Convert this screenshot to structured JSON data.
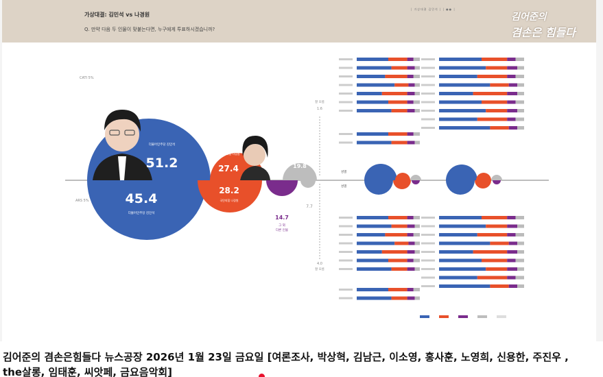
{
  "slide": {
    "title": "가상대결: 김민석 vs 나경원",
    "question": "Q. 만약 다음 두 인물이 맞붙는다면, 누구에게 투표하시겠습니까?",
    "source": "| 가상대결 김민석 | | ●● |",
    "logo_line1": "김어준의",
    "logo_line2": "겸손은 힘들다"
  },
  "left_labels": {
    "top": "CATI 5%",
    "bottom": "ARS 5%"
  },
  "candidates": {
    "kim_top": {
      "value": "51.2",
      "party": "더불어민주당 김민석"
    },
    "kim_bottom": {
      "value": "45.4",
      "party": "더불어민주당 김민석"
    },
    "na_top": {
      "value": "27.4",
      "party": "국민의힘 나경원"
    },
    "na_bottom": {
      "value": "28.2",
      "party": "국민의힘 나경원"
    },
    "other_top": {
      "value": "19.8"
    },
    "other_bottom": {
      "value": "14.7",
      "label1": "그 외",
      "label2": "다른 인물"
    },
    "undecided_top": {
      "value": "1.6",
      "label": "잘 모름"
    },
    "undecided_bottom": {
      "value": "7.7"
    },
    "dontknow_bottom": {
      "value": "4.0",
      "label": "잘 모름"
    }
  },
  "middle_rows": {
    "top_label": "성별",
    "bottom_label": "성별"
  },
  "colors": {
    "kim": "#3a64b4",
    "na": "#e8502a",
    "other": "#7a2c8c",
    "gray": "#bbbbbb",
    "header_bg": "#ddd3c6"
  },
  "chart_data": {
    "type": "bar",
    "title": "가상대결: 김민석 vs 나경원",
    "series": [
      {
        "name": "김민석",
        "values": [
          51.2,
          45.4
        ]
      },
      {
        "name": "나경원",
        "values": [
          27.4,
          28.2
        ]
      }
    ],
    "categories": [
      "CATI",
      "ARS"
    ]
  },
  "caption": {
    "line1": "김어준의 겸손은힘들다 뉴스공장 2026년 1월 23일 금요일 [여론조사, 박상혁, 김남근, 이소영, 홍사훈, 노영희, 신용한, 주진우 ,",
    "line2": "the살롱, 임태훈, 씨앗페, 금요음악회]"
  }
}
